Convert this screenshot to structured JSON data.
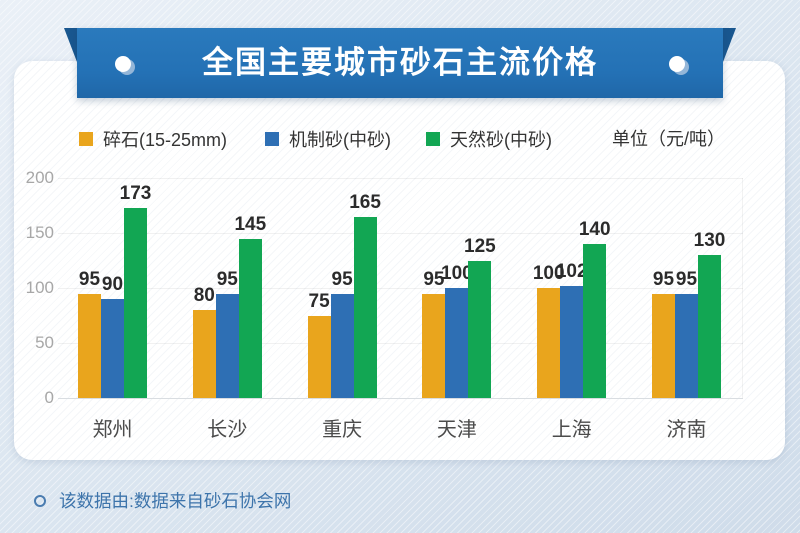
{
  "header": {
    "title": "全国主要城市砂石主流价格"
  },
  "chart_data": {
    "type": "bar",
    "title": "全国主要城市砂石主流价格",
    "unit_label": "单位（元/吨）",
    "categories": [
      "郑州",
      "长沙",
      "重庆",
      "天津",
      "上海",
      "济南"
    ],
    "series": [
      {
        "name": "碎石(15-25mm)",
        "color": "#e9a51d",
        "values": [
          95,
          80,
          75,
          95,
          100,
          95
        ]
      },
      {
        "name": "机制砂(中砂)",
        "color": "#2e6fb4",
        "values": [
          90,
          95,
          95,
          100,
          102,
          95
        ]
      },
      {
        "name": "天然砂(中砂)",
        "color": "#12a653",
        "values": [
          173,
          145,
          165,
          125,
          140,
          130
        ]
      }
    ],
    "y_ticks": [
      0,
      50,
      100,
      150,
      200
    ],
    "ylim": [
      0,
      200
    ],
    "grid": true,
    "legend_position": "top"
  },
  "colors": {
    "banner_blue": "#2471b5",
    "banner_fold": "#19578f",
    "crushed_stone_orange": "#e9a51d",
    "machine_sand_blue": "#2e6fb4",
    "natural_sand_green": "#12a653",
    "footer_text": "#3d74ab"
  },
  "footer": {
    "note": "该数据由:数据来自砂石协会网"
  }
}
